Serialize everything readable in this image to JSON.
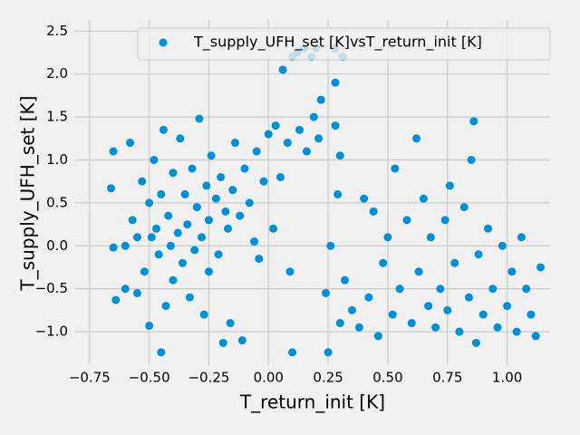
{
  "chart_data": {
    "type": "scatter",
    "x_label": "T_return_init [K]",
    "y_label": "T_supply_UFH_set [K]",
    "xlim": [
      -0.81,
      1.18
    ],
    "ylim": [
      -1.39,
      2.63
    ],
    "xticks": [
      {
        "value": -0.75,
        "label": "−0.75"
      },
      {
        "value": -0.5,
        "label": "−0.50"
      },
      {
        "value": -0.25,
        "label": "−0.25"
      },
      {
        "value": 0,
        "label": "0.00"
      },
      0.25,
      {
        "value": 0.5,
        "label": "0.50"
      },
      0.75,
      {
        "value": 1,
        "label": "1.00"
      }
    ],
    "yticks": [
      {
        "value": -1,
        "label": "−1.0"
      },
      {
        "value": -0.5,
        "label": "−0.5"
      },
      {
        "value": 0,
        "label": "0.0"
      },
      0.5,
      {
        "value": 1,
        "label": "1.0"
      },
      1.5,
      {
        "value": 2,
        "label": "2.0"
      },
      2.5
    ],
    "grid": true,
    "legend": "upper right",
    "x": [
      -0.65,
      -0.66,
      -0.65,
      -0.64,
      -0.6,
      -0.6,
      -0.58,
      -0.57,
      -0.55,
      -0.55,
      -0.53,
      -0.52,
      -0.5,
      -0.5,
      -0.49,
      -0.48,
      -0.47,
      -0.46,
      -0.45,
      -0.45,
      -0.44,
      -0.43,
      -0.42,
      -0.41,
      -0.4,
      -0.4,
      -0.38,
      -0.37,
      -0.36,
      -0.35,
      -0.34,
      -0.33,
      -0.32,
      -0.31,
      -0.3,
      -0.29,
      -0.28,
      -0.27,
      -0.26,
      -0.25,
      -0.25,
      -0.24,
      -0.22,
      -0.21,
      -0.2,
      -0.19,
      -0.18,
      -0.17,
      -0.16,
      -0.15,
      -0.14,
      -0.12,
      -0.11,
      -0.1,
      -0.08,
      -0.06,
      -0.05,
      -0.04,
      -0.02,
      0.0,
      0.02,
      0.03,
      0.05,
      0.06,
      0.08,
      0.09,
      0.1,
      0.1,
      0.12,
      0.13,
      0.15,
      0.16,
      0.18,
      0.19,
      0.2,
      0.21,
      0.22,
      0.24,
      0.25,
      0.26,
      0.28,
      0.28,
      0.28,
      0.29,
      0.3,
      0.3,
      0.31,
      0.32,
      0.35,
      0.38,
      0.4,
      0.42,
      0.44,
      0.46,
      0.48,
      0.5,
      0.52,
      0.53,
      0.55,
      0.58,
      0.6,
      0.62,
      0.63,
      0.65,
      0.67,
      0.68,
      0.7,
      0.72,
      0.74,
      0.75,
      0.76,
      0.78,
      0.8,
      0.82,
      0.84,
      0.85,
      0.86,
      0.87,
      0.88,
      0.9,
      0.92,
      0.94,
      0.96,
      0.98,
      1.0,
      1.02,
      1.04,
      1.06,
      1.08,
      1.1,
      1.12,
      1.14
    ],
    "series": [
      {
        "name": "T_supply_UFH_set [K]vsT_return_init [K]",
        "color": "#008fd5",
        "values": [
          1.1,
          0.67,
          -0.02,
          -0.63,
          0.0,
          -0.5,
          1.2,
          0.3,
          -0.55,
          0.1,
          0.75,
          -0.3,
          0.5,
          -0.93,
          0.1,
          1.0,
          0.2,
          -0.1,
          -1.24,
          0.6,
          1.35,
          -0.7,
          0.35,
          0.0,
          0.85,
          -0.4,
          0.15,
          1.25,
          -0.2,
          0.6,
          0.25,
          -0.6,
          0.9,
          -0.05,
          0.45,
          1.48,
          0.1,
          -0.8,
          0.7,
          0.3,
          -0.3,
          1.05,
          0.55,
          -0.1,
          0.8,
          -1.13,
          0.4,
          0.2,
          -0.9,
          0.65,
          1.2,
          0.35,
          -1.1,
          0.9,
          0.5,
          0.05,
          1.1,
          -0.15,
          0.75,
          1.3,
          0.2,
          1.4,
          0.8,
          2.05,
          1.2,
          -0.3,
          -1.24,
          2.2,
          2.25,
          1.35,
          2.3,
          1.1,
          2.2,
          1.5,
          2.3,
          1.25,
          1.7,
          -0.55,
          -1.24,
          0.0,
          2.3,
          1.9,
          1.4,
          0.6,
          -0.9,
          1.05,
          2.2,
          -0.4,
          -0.75,
          -0.95,
          0.55,
          -0.6,
          0.4,
          -1.05,
          -0.2,
          0.1,
          -0.8,
          0.9,
          -0.5,
          0.3,
          -0.9,
          1.25,
          -0.3,
          0.55,
          -0.7,
          0.1,
          -0.95,
          -0.5,
          0.3,
          -0.75,
          0.7,
          -0.2,
          -1.0,
          0.45,
          -0.6,
          1.0,
          1.45,
          -1.13,
          -0.1,
          -0.8,
          0.2,
          -0.5,
          -0.95,
          0.0,
          -0.7,
          -0.3,
          -1.0,
          0.1,
          -0.5,
          -0.8,
          -1.05,
          -0.25
        ]
      }
    ]
  }
}
